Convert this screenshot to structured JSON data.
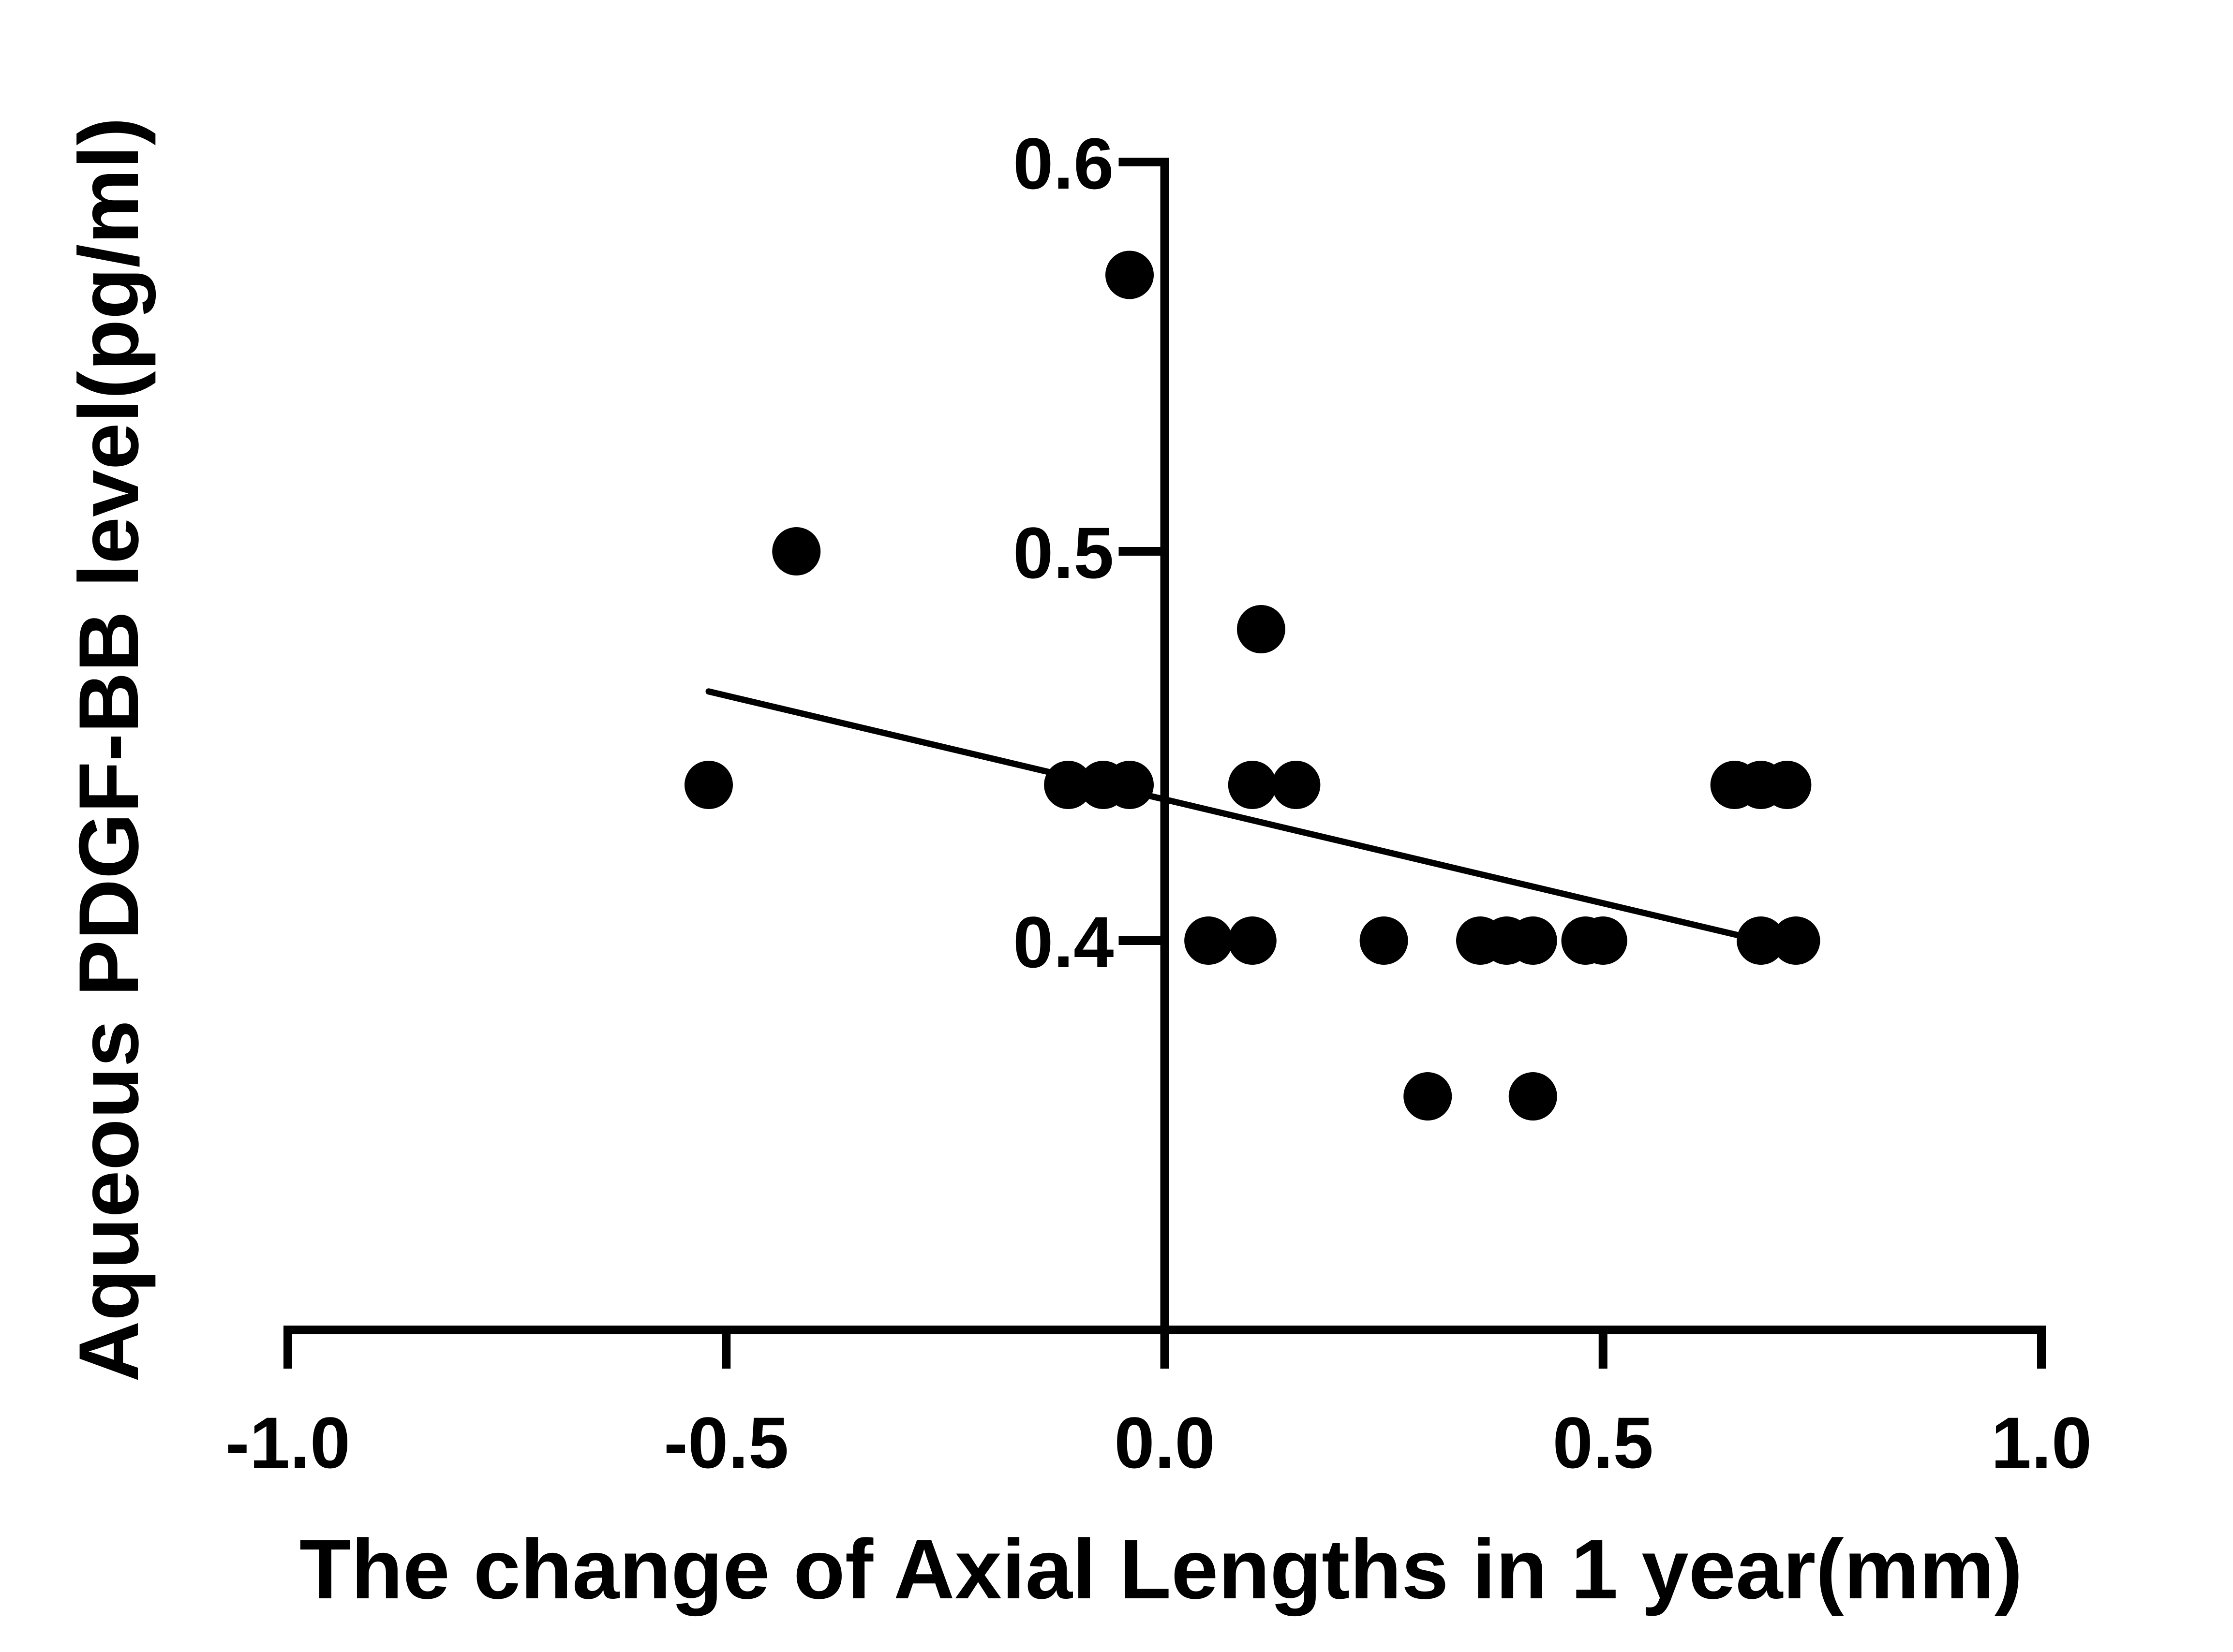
{
  "chart_data": {
    "type": "scatter",
    "title": "",
    "xlabel": "The change of Axial Lengths in 1 year(mm)",
    "ylabel": "Aqueous PDGF-BB level(pg/ml)",
    "xlim": [
      -1.0,
      1.0
    ],
    "ylim": [
      0.3,
      0.6
    ],
    "x_ticks": [
      -1.0,
      -0.5,
      0.0,
      0.5,
      1.0
    ],
    "x_tick_labels": [
      "-1.0",
      "-0.5",
      "0.0",
      "0.5",
      "1.0"
    ],
    "y_ticks": [
      0.4,
      0.5,
      0.6
    ],
    "y_tick_labels": [
      "0.4",
      "0.5",
      "0.6"
    ],
    "grid": false,
    "legend": "none",
    "color": "#000000",
    "points": [
      {
        "x": -0.52,
        "y": 0.44
      },
      {
        "x": -0.42,
        "y": 0.5
      },
      {
        "x": -0.11,
        "y": 0.44
      },
      {
        "x": -0.07,
        "y": 0.44
      },
      {
        "x": -0.04,
        "y": 0.44
      },
      {
        "x": -0.04,
        "y": 0.571
      },
      {
        "x": 0.05,
        "y": 0.4
      },
      {
        "x": 0.1,
        "y": 0.4
      },
      {
        "x": 0.1,
        "y": 0.44
      },
      {
        "x": 0.11,
        "y": 0.48
      },
      {
        "x": 0.15,
        "y": 0.44
      },
      {
        "x": 0.25,
        "y": 0.4
      },
      {
        "x": 0.3,
        "y": 0.36
      },
      {
        "x": 0.36,
        "y": 0.4
      },
      {
        "x": 0.39,
        "y": 0.4
      },
      {
        "x": 0.42,
        "y": 0.4
      },
      {
        "x": 0.42,
        "y": 0.36
      },
      {
        "x": 0.48,
        "y": 0.4
      },
      {
        "x": 0.5,
        "y": 0.4
      },
      {
        "x": 0.65,
        "y": 0.44
      },
      {
        "x": 0.68,
        "y": 0.44
      },
      {
        "x": 0.71,
        "y": 0.44
      },
      {
        "x": 0.68,
        "y": 0.4
      },
      {
        "x": 0.72,
        "y": 0.4
      }
    ],
    "regression_line": {
      "x": [
        -0.52,
        0.68
      ],
      "y": [
        0.464,
        0.4
      ]
    }
  }
}
